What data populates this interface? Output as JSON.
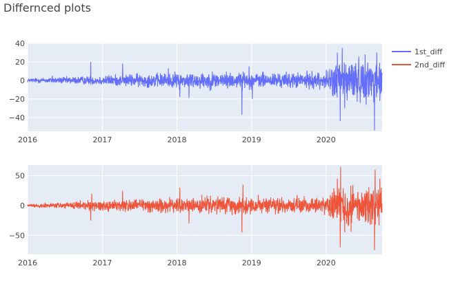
{
  "title": "Differnced plots",
  "colors": {
    "plot_bg": "#e5ecf6",
    "grid": "#ffffff",
    "series_1": "#636efa",
    "series_2": "#ef553b",
    "text": "#444444"
  },
  "legend": {
    "placement": "top-right",
    "items": [
      "1st_diff",
      "2nd_diff"
    ]
  },
  "chart_data": [
    {
      "type": "line",
      "name": "1st_diff",
      "x_range": [
        "2016-01-01",
        "2020-10-01"
      ],
      "x_ticks": [
        "2016",
        "2017",
        "2018",
        "2019",
        "2020"
      ],
      "ylim": [
        -55,
        40
      ],
      "y_ticks": [
        40,
        20,
        0,
        -20,
        -40
      ],
      "grid": true,
      "series_color": "#636efa",
      "sampling": "daily",
      "noise_envelope": [
        {
          "x": "2016-01-01",
          "amplitude": 2
        },
        {
          "x": "2016-11-01",
          "amplitude": 4
        },
        {
          "x": "2017-06-01",
          "amplitude": 6
        },
        {
          "x": "2018-06-01",
          "amplitude": 8
        },
        {
          "x": "2019-06-01",
          "amplitude": 7
        },
        {
          "x": "2020-01-01",
          "amplitude": 8
        },
        {
          "x": "2020-03-01",
          "amplitude": 20
        },
        {
          "x": "2020-10-01",
          "amplitude": 18
        }
      ],
      "spikes": [
        {
          "x": "2016-05-01",
          "y": 5
        },
        {
          "x": "2016-11-05",
          "y": 20
        },
        {
          "x": "2017-04-10",
          "y": 18
        },
        {
          "x": "2017-11-20",
          "y": 13
        },
        {
          "x": "2018-01-15",
          "y": -18
        },
        {
          "x": "2018-03-01",
          "y": -19
        },
        {
          "x": "2018-11-15",
          "y": -37
        },
        {
          "x": "2018-12-20",
          "y": 15
        },
        {
          "x": "2019-01-05",
          "y": -20
        },
        {
          "x": "2020-02-25",
          "y": 30
        },
        {
          "x": "2020-03-10",
          "y": -44
        },
        {
          "x": "2020-03-20",
          "y": 35
        },
        {
          "x": "2020-04-01",
          "y": -30
        },
        {
          "x": "2020-07-10",
          "y": 28
        },
        {
          "x": "2020-08-25",
          "y": -54
        },
        {
          "x": "2020-09-05",
          "y": 30
        },
        {
          "x": "2020-09-20",
          "y": -22
        }
      ]
    },
    {
      "type": "line",
      "name": "2nd_diff",
      "x_range": [
        "2016-01-01",
        "2020-10-01"
      ],
      "x_ticks": [
        "2016",
        "2017",
        "2018",
        "2019",
        "2020"
      ],
      "ylim": [
        -82,
        68
      ],
      "y_ticks": [
        50,
        0,
        -50
      ],
      "grid": true,
      "series_color": "#ef553b",
      "sampling": "daily",
      "noise_envelope": [
        {
          "x": "2016-01-01",
          "amplitude": 2
        },
        {
          "x": "2016-11-01",
          "amplitude": 7
        },
        {
          "x": "2017-06-01",
          "amplitude": 10
        },
        {
          "x": "2018-06-01",
          "amplitude": 12
        },
        {
          "x": "2019-06-01",
          "amplitude": 11
        },
        {
          "x": "2020-01-01",
          "amplitude": 12
        },
        {
          "x": "2020-03-01",
          "amplitude": 30
        },
        {
          "x": "2020-10-01",
          "amplitude": 28
        }
      ],
      "spikes": [
        {
          "x": "2016-11-05",
          "y": -25
        },
        {
          "x": "2016-11-10",
          "y": 20
        },
        {
          "x": "2017-04-10",
          "y": 25
        },
        {
          "x": "2018-01-15",
          "y": 30
        },
        {
          "x": "2018-03-01",
          "y": -30
        },
        {
          "x": "2018-11-15",
          "y": -45
        },
        {
          "x": "2018-11-20",
          "y": 35
        },
        {
          "x": "2020-02-25",
          "y": 45
        },
        {
          "x": "2020-03-10",
          "y": -70
        },
        {
          "x": "2020-03-12",
          "y": 65
        },
        {
          "x": "2020-04-01",
          "y": -45
        },
        {
          "x": "2020-08-25",
          "y": -75
        },
        {
          "x": "2020-08-28",
          "y": 60
        },
        {
          "x": "2020-09-20",
          "y": 45
        }
      ]
    }
  ]
}
